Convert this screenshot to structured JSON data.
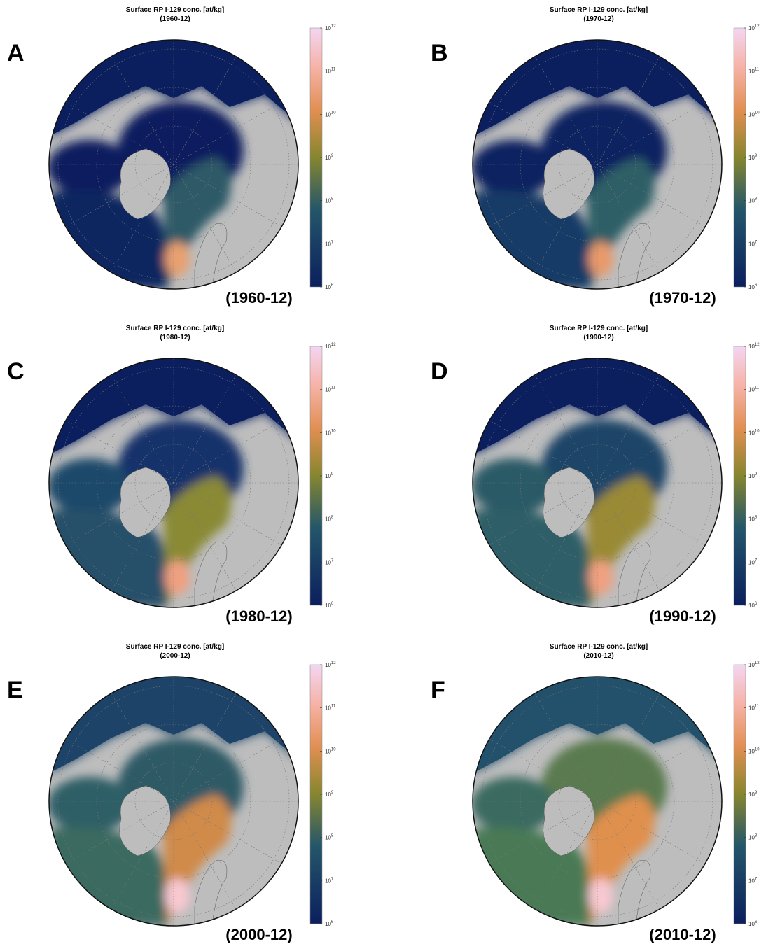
{
  "panels": [
    {
      "letter": "A",
      "title": "Surface RP I-129 conc. [at/kg]",
      "subtitle": "(1960-12)",
      "date_label": "(1960-12)"
    },
    {
      "letter": "B",
      "title": "Surface RP I-129 conc. [at/kg]",
      "subtitle": "(1970-12)",
      "date_label": "(1970-12)"
    },
    {
      "letter": "C",
      "title": "Surface RP I-129 conc. [at/kg]",
      "subtitle": "(1980-12)",
      "date_label": "(1980-12)"
    },
    {
      "letter": "D",
      "title": "Surface RP I-129 conc. [at/kg]",
      "subtitle": "(1990-12)",
      "date_label": "(1990-12)"
    },
    {
      "letter": "E",
      "title": "Surface RP I-129 conc. [at/kg]",
      "subtitle": "(2000-12)",
      "date_label": "(2000-12)"
    },
    {
      "letter": "F",
      "title": "Surface RP I-129 conc. [at/kg]",
      "subtitle": "(2010-12)",
      "date_label": "(2010-12)"
    }
  ],
  "colorbar": {
    "base": "10",
    "exponent_range": [
      6,
      12
    ],
    "ticks": [
      6,
      7,
      8,
      9,
      10,
      11,
      12
    ]
  }
}
